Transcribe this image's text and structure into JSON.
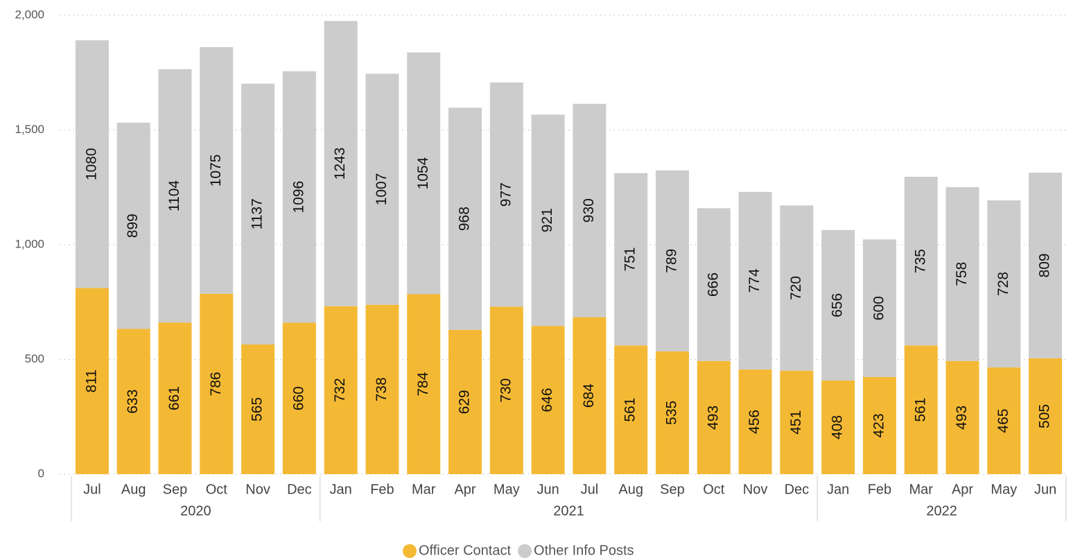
{
  "chart_data": {
    "type": "stacked_bar",
    "groups": [
      {
        "name": "2020",
        "categories": [
          "Jul",
          "Aug",
          "Sep",
          "Oct",
          "Nov",
          "Dec"
        ]
      },
      {
        "name": "2021",
        "categories": [
          "Jan",
          "Feb",
          "Mar",
          "Apr",
          "May",
          "Jun",
          "Jul",
          "Aug",
          "Sep",
          "Oct",
          "Nov",
          "Dec"
        ]
      },
      {
        "name": "2022",
        "categories": [
          "Jan",
          "Feb",
          "Mar",
          "Apr",
          "May",
          "Jun"
        ]
      }
    ],
    "series": [
      {
        "name": "Officer Contact",
        "color": "#f4b934",
        "values": [
          811,
          633,
          661,
          786,
          565,
          660,
          732,
          738,
          784,
          629,
          730,
          646,
          684,
          561,
          535,
          493,
          456,
          451,
          408,
          423,
          561,
          493,
          465,
          505
        ]
      },
      {
        "name": "Other Info Posts",
        "color": "#cccccc",
        "values": [
          1080,
          899,
          1104,
          1075,
          1137,
          1096,
          1243,
          1007,
          1054,
          968,
          977,
          921,
          930,
          751,
          789,
          666,
          774,
          720,
          656,
          600,
          735,
          758,
          728,
          809
        ]
      }
    ],
    "ylim": [
      0,
      2000
    ],
    "yticks": [
      0,
      500,
      {
        "value": 1000,
        "label": "1,000"
      },
      {
        "value": 1500,
        "label": "1,500"
      },
      {
        "value": 2000,
        "label": "2,000"
      }
    ],
    "grid": true,
    "legend": "bottom"
  }
}
